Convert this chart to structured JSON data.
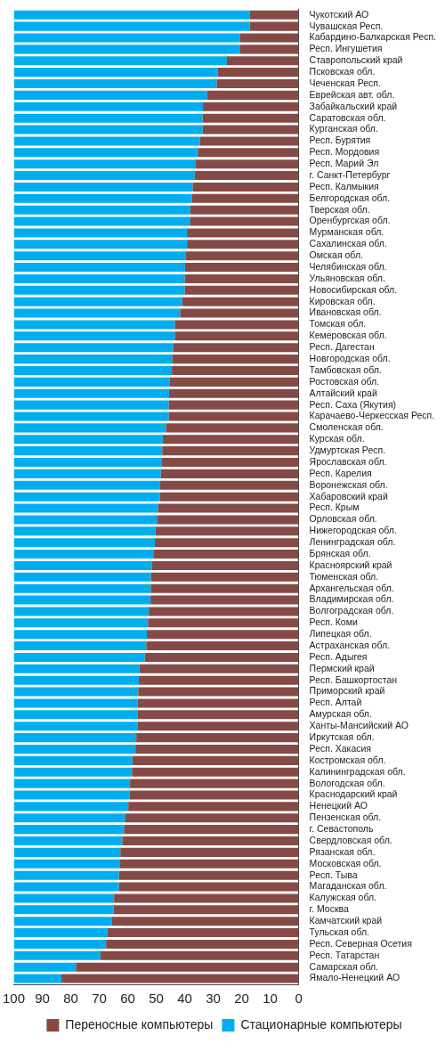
{
  "chart_data": {
    "type": "bar",
    "orientation": "horizontal",
    "stacked": true,
    "categories": [
      "Чукотский АО",
      "Чувашская Респ.",
      "Кабардино-Балкарская Респ.",
      "Респ. Ингушетия",
      "Ставропольский край",
      "Псковская обл.",
      "Чеченская Респ.",
      "Еврейская авт. обл.",
      "Забайкальский край",
      "Саратовская обл.",
      "Курганская обл.",
      "Респ. Бурятия",
      "Респ. Мордовия",
      "Респ. Марий Эл",
      "г. Санкт-Петербург",
      "Респ. Калмыкия",
      "Белгородская обл.",
      "Тверская обл.",
      "Оренбургская обл.",
      "Мурманская обл.",
      "Сахалинская обл.",
      "Омская обл.",
      "Челябинская обл.",
      "Ульяновская обл.",
      "Новосибирская обл.",
      "Кировская обл.",
      "Ивановская обл.",
      "Томская обл.",
      "Кемеровская обл.",
      "Респ. Дагестан",
      "Новгородская обл.",
      "Тамбовская обл.",
      "Ростовская обл.",
      "Алтайский край",
      "Респ. Саха (Якутия)",
      "Карачаево-Черкесская Респ.",
      "Смоленская обл.",
      "Курская обл.",
      "Удмуртская Респ.",
      "Ярославская обл.",
      "Респ. Карелия",
      "Воронежская обл.",
      "Хабаровский край",
      "Респ. Крым",
      "Орловская обл.",
      "Нижегородская обл.",
      "Ленинградская обл.",
      "Брянская обл.",
      "Красноярский край",
      "Тюменская обл.",
      "Архангельская обл.",
      "Владимирская обл.",
      "Волгоградская обл.",
      "Респ. Коми",
      "Липецкая обл.",
      "Астраханская обл.",
      "Респ. Адыгея",
      "Пермский край",
      "Респ. Башкортостан",
      "Приморский край",
      "Респ. Алтай",
      "Амурская обл.",
      "Ханты-Мансийский АО",
      "Иркутская обл.",
      "Респ. Хакасия",
      "Костромская обл.",
      "Калининградская обл.",
      "Вологодская обл.",
      "Краснодарский край",
      "Ненецкий АО",
      "Пензенская обл.",
      "г. Севастополь",
      "Свердловская обл.",
      "Рязанская обл.",
      "Московская обл.",
      "Респ. Тыва",
      "Магаданская обл.",
      "Калужская обл.",
      "г. Москва",
      "Камчатский край",
      "Тульская обл.",
      "Респ. Северная Осетия",
      "Респ. Татарстан",
      "Самарская обл.",
      "Ямало-Ненецкий АО"
    ],
    "series": [
      {
        "name": "Переносные компьютеры",
        "color": "#864a46",
        "values": [
          17.1,
          17.2,
          20.6,
          20.7,
          25.2,
          28.4,
          28.8,
          32.2,
          33.6,
          33.7,
          33.7,
          34.7,
          35.4,
          36.1,
          36.5,
          37.2,
          37.5,
          38.1,
          38.2,
          39.2,
          39.2,
          39.6,
          39.9,
          40.0,
          40.0,
          40.9,
          41.6,
          43.5,
          43.5,
          44.1,
          44.4,
          44.5,
          45.2,
          45.5,
          45.6,
          45.6,
          46.6,
          47.7,
          47.9,
          48.0,
          48.4,
          48.6,
          48.7,
          49.4,
          49.8,
          50.3,
          50.5,
          50.8,
          51.5,
          51.9,
          51.9,
          52.0,
          52.6,
          52.9,
          53.3,
          53.5,
          54.0,
          55.9,
          56.1,
          56.3,
          56.5,
          56.6,
          56.6,
          57.0,
          57.3,
          58.4,
          58.5,
          59.2,
          59.4,
          59.8,
          61.0,
          61.3,
          61.9,
          62.6,
          62.9,
          63.1,
          63.1,
          64.8,
          65.0,
          65.5,
          67.2,
          67.6,
          69.6,
          78.2,
          83.3
        ]
      },
      {
        "name": "Стационарные компьютеры",
        "color": "#00aeef",
        "values": [
          82.9,
          82.8,
          79.4,
          79.3,
          74.8,
          71.6,
          71.2,
          67.8,
          66.4,
          66.3,
          66.3,
          65.3,
          64.6,
          63.9,
          63.5,
          62.8,
          62.5,
          61.9,
          61.8,
          60.8,
          60.8,
          60.4,
          60.1,
          60.0,
          60.0,
          59.1,
          58.4,
          56.5,
          56.5,
          55.9,
          55.6,
          55.5,
          54.8,
          54.5,
          54.4,
          54.4,
          53.4,
          52.3,
          52.1,
          52.0,
          51.6,
          51.4,
          51.3,
          50.6,
          50.2,
          49.7,
          49.5,
          49.2,
          48.5,
          48.1,
          48.1,
          48.0,
          47.4,
          47.1,
          46.7,
          46.5,
          46.0,
          44.1,
          43.9,
          43.7,
          43.5,
          43.4,
          43.4,
          43.0,
          42.7,
          41.6,
          41.5,
          40.8,
          40.6,
          40.2,
          39.0,
          38.7,
          38.1,
          37.4,
          37.1,
          36.9,
          36.9,
          35.2,
          35.0,
          34.5,
          32.8,
          32.4,
          30.4,
          21.8,
          16.7
        ]
      }
    ],
    "xlim": [
      100,
      0
    ],
    "xticks": [
      100,
      90,
      80,
      70,
      60,
      50,
      40,
      30,
      20,
      10,
      0
    ],
    "grid": false,
    "legend": "bottom"
  }
}
